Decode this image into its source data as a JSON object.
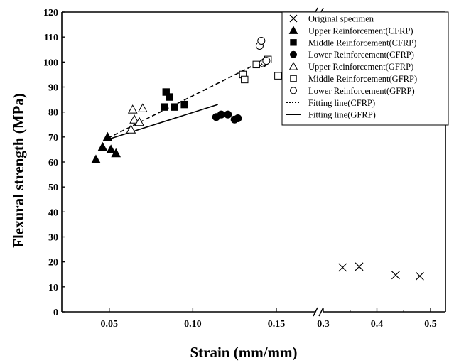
{
  "chart_data": {
    "type": "scatter",
    "xlabel": "Strain (mm/mm)",
    "ylabel": "Flexural strength (MPa)",
    "ylim": [
      0,
      120
    ],
    "y_ticks": [
      0,
      10,
      20,
      30,
      40,
      50,
      60,
      70,
      80,
      90,
      100,
      110,
      120
    ],
    "x_axis_break": true,
    "x_segments": [
      {
        "range": [
          0.025,
          0.17
        ],
        "ticks": [
          0.05,
          0.1,
          0.15
        ],
        "tick_labels": [
          "0.05",
          "0.10",
          "0.15"
        ]
      },
      {
        "range": [
          0.3,
          0.5
        ],
        "ticks": [
          0.3,
          0.35,
          0.4,
          0.45,
          0.5
        ],
        "tick_labels": [
          "0.3",
          "",
          "0.4",
          "",
          "0.5"
        ]
      }
    ],
    "grid": false,
    "legend_position": "top-right",
    "series": [
      {
        "name": "Original specimen",
        "marker": "cross",
        "points": [
          [
            0.336,
            17.8
          ],
          [
            0.367,
            18.1
          ],
          [
            0.435,
            14.7
          ],
          [
            0.48,
            14.3
          ]
        ]
      },
      {
        "name": "Upper Reinforcement(CFRP)",
        "marker": "triangle-filled",
        "points": [
          [
            0.042,
            61
          ],
          [
            0.046,
            66
          ],
          [
            0.049,
            70
          ],
          [
            0.051,
            65
          ],
          [
            0.054,
            63.5
          ]
        ]
      },
      {
        "name": "Middle Reinforcement(CFRP)",
        "marker": "square-filled",
        "points": [
          [
            0.083,
            82
          ],
          [
            0.084,
            88
          ],
          [
            0.086,
            86
          ],
          [
            0.089,
            82
          ],
          [
            0.095,
            83
          ]
        ]
      },
      {
        "name": "Lower Reinforcement(CFRP)",
        "marker": "circle-filled",
        "points": [
          [
            0.114,
            78
          ],
          [
            0.117,
            79
          ],
          [
            0.121,
            79
          ],
          [
            0.125,
            77
          ],
          [
            0.127,
            77.5
          ]
        ]
      },
      {
        "name": "Upper Reinforcement(GFRP)",
        "marker": "triangle-open",
        "points": [
          [
            0.063,
            73
          ],
          [
            0.064,
            81
          ],
          [
            0.065,
            77
          ],
          [
            0.068,
            76
          ],
          [
            0.07,
            81.5
          ]
        ]
      },
      {
        "name": "Middle Reinforcement(GFRP)",
        "marker": "square-open",
        "points": [
          [
            0.13,
            95
          ],
          [
            0.131,
            93
          ],
          [
            0.138,
            99
          ],
          [
            0.145,
            101
          ],
          [
            0.151,
            94.5
          ]
        ]
      },
      {
        "name": "Lower Reinforcement(GFRP)",
        "marker": "circle-open",
        "points": [
          [
            0.14,
            106.5
          ],
          [
            0.141,
            108.5
          ],
          [
            0.142,
            99.5
          ],
          [
            0.143,
            100
          ],
          [
            0.144,
            100.5
          ]
        ]
      }
    ],
    "fitting_lines": [
      {
        "name": "Fitting line(CFRP)",
        "style": "dashed",
        "points": [
          [
            0.049,
            69.5
          ],
          [
            0.145,
            101.5
          ]
        ]
      },
      {
        "name": "Fitting line(GFRP)",
        "style": "solid",
        "points": [
          [
            0.049,
            69
          ],
          [
            0.115,
            83
          ]
        ]
      }
    ]
  }
}
